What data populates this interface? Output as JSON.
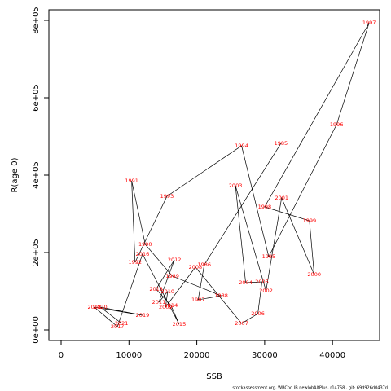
{
  "chart_data": {
    "type": "line",
    "xlabel": "SSB",
    "ylabel": "R(age 0)",
    "footer": "stockassessment.org, WBCod IB newlobAltPlus, r14768 , git: 69d926d0437d",
    "labels": [
      "1985",
      "1986",
      "1987",
      "1988",
      "1989",
      "1990",
      "1991",
      "1992",
      "1993",
      "1994",
      "1995",
      "1996",
      "1997",
      "1998",
      "1999",
      "2000",
      "2001",
      "2002",
      "2003",
      "2004",
      "2005",
      "2006",
      "2007",
      "2008",
      "2009",
      "2010",
      "2011",
      "2012",
      "2013",
      "2014",
      "2015",
      "2016",
      "2017",
      "2018",
      "2019",
      "2020",
      "2021"
    ],
    "x": [
      32400,
      21100,
      20200,
      23600,
      16400,
      12400,
      10400,
      10900,
      15600,
      26600,
      30600,
      40600,
      45400,
      30000,
      36600,
      37300,
      32500,
      30200,
      25700,
      27200,
      29600,
      29000,
      26600,
      19800,
      15400,
      15700,
      14400,
      16700,
      14000,
      16200,
      17400,
      12000,
      8300,
      4900,
      12000,
      5800,
      8900
    ],
    "values": [
      482100,
      168400,
      77900,
      88400,
      138900,
      221000,
      385300,
      174700,
      345300,
      475800,
      189500,
      530500,
      793700,
      317900,
      282100,
      143200,
      341100,
      101100,
      372600,
      122100,
      124200,
      42100,
      16800,
      162100,
      58900,
      98900,
      71600,
      181100,
      105300,
      63200,
      14700,
      195800,
      8400,
      58900,
      37900,
      58900,
      16800
    ],
    "line_color": "#000000",
    "label_color": "#ff0000",
    "xlim": [
      -1800,
      46940
    ],
    "ylim": [
      -27400,
      827400
    ],
    "xticks": [
      0,
      10000,
      20000,
      30000,
      40000
    ],
    "yticks": [
      {
        "value": 0,
        "label": "0e+00"
      },
      {
        "value": 200000,
        "label": "2e+05"
      },
      {
        "value": 400000,
        "label": "4e+05"
      },
      {
        "value": 600000,
        "label": "6e+05"
      },
      {
        "value": 800000,
        "label": "8e+05"
      }
    ]
  }
}
